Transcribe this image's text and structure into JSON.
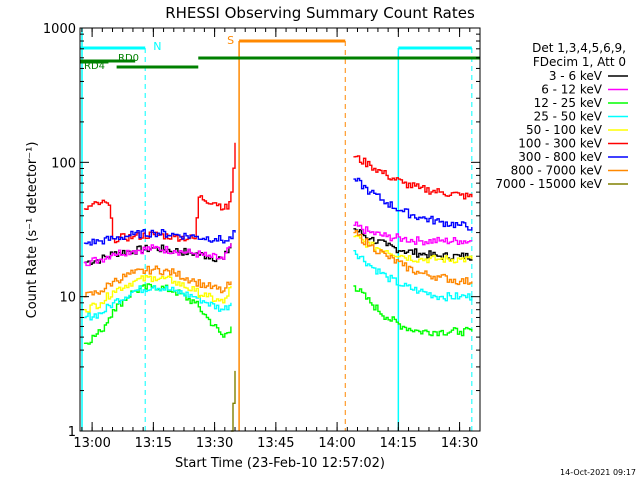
{
  "chart_data": {
    "type": "line",
    "title": "RHESSI Observing Summary Count Rates",
    "xlabel": "Start Time (23-Feb-10 12:57:02)",
    "ylabel": "Count Rate (s⁻¹ detector⁻¹)",
    "yscale": "log",
    "xlim": [
      "12:57:02",
      "14:35:00"
    ],
    "ylim": [
      1,
      1000
    ],
    "x_ticks": [
      "13:00",
      "13:15",
      "13:30",
      "13:45",
      "14:00",
      "14:15",
      "14:30"
    ],
    "y_ticks": [
      "1",
      "10",
      "100",
      "1000"
    ],
    "grid": false,
    "legend": {
      "position": "right",
      "header": [
        "Det 1,3,4,5,6,9,",
        "FDecim 1, Att 0"
      ]
    },
    "annotations": {
      "night_label": "N",
      "saa_label": "S",
      "rd0_label": "RD0",
      "rd4_label": "RD4",
      "timestamp": "14-Oct-2021 09:17"
    },
    "flag_intervals": {
      "night": [
        [
          "12:57:02",
          "13:13:00"
        ],
        [
          "14:15:00",
          "14:33:00"
        ]
      ],
      "saa": [
        [
          "13:36:00",
          "14:02:00"
        ]
      ],
      "rd0": [
        [
          "12:57:02",
          "13:13:00"
        ]
      ],
      "rd4": [
        [
          "12:57:02",
          "13:04:00"
        ],
        [
          "13:06:00",
          "13:26:00"
        ],
        [
          "13:26:00",
          "14:35:00"
        ]
      ]
    },
    "series": [
      {
        "name": "3 - 6 keV",
        "color": "#000000",
        "points": [
          [
            "12:58",
            18
          ],
          [
            "13:02",
            19
          ],
          [
            "13:05",
            21
          ],
          [
            "13:10",
            22
          ],
          [
            "13:15",
            23
          ],
          [
            "13:20",
            22
          ],
          [
            "13:25",
            21
          ],
          [
            "13:28",
            20
          ],
          [
            "13:32",
            19
          ],
          [
            "13:34",
            25
          ],
          [
            "14:04",
            32
          ],
          [
            "14:08",
            27
          ],
          [
            "14:12",
            24
          ],
          [
            "14:16",
            22
          ],
          [
            "14:20",
            21
          ],
          [
            "14:25",
            20
          ],
          [
            "14:30",
            20
          ],
          [
            "14:33",
            20
          ]
        ]
      },
      {
        "name": "6 - 12 keV",
        "color": "#ff00ff",
        "points": [
          [
            "12:58",
            18
          ],
          [
            "13:02",
            19
          ],
          [
            "13:05",
            21
          ],
          [
            "13:10",
            22
          ],
          [
            "13:15",
            23
          ],
          [
            "13:20",
            22
          ],
          [
            "13:25",
            21
          ],
          [
            "13:28",
            20
          ],
          [
            "13:32",
            19
          ],
          [
            "13:34",
            25
          ],
          [
            "14:04",
            34
          ],
          [
            "14:08",
            30
          ],
          [
            "14:12",
            28
          ],
          [
            "14:16",
            27
          ],
          [
            "14:20",
            26
          ],
          [
            "14:25",
            26
          ],
          [
            "14:30",
            26
          ],
          [
            "14:33",
            26
          ]
        ]
      },
      {
        "name": "12 - 25 keV",
        "color": "#00ff00",
        "points": [
          [
            "12:58",
            4.5
          ],
          [
            "13:02",
            5.5
          ],
          [
            "13:05",
            8
          ],
          [
            "13:10",
            11
          ],
          [
            "13:15",
            12
          ],
          [
            "13:20",
            11
          ],
          [
            "13:25",
            9
          ],
          [
            "13:28",
            7
          ],
          [
            "13:32",
            5
          ],
          [
            "13:34",
            6
          ],
          [
            "14:04",
            12
          ],
          [
            "14:08",
            9
          ],
          [
            "14:12",
            7
          ],
          [
            "14:16",
            6
          ],
          [
            "14:20",
            5.5
          ],
          [
            "14:25",
            5.5
          ],
          [
            "14:30",
            5.5
          ],
          [
            "14:33",
            5.5
          ]
        ]
      },
      {
        "name": "25 - 50 keV",
        "color": "#00ffff",
        "points": [
          [
            "12:58",
            7
          ],
          [
            "13:02",
            7.5
          ],
          [
            "13:05",
            9
          ],
          [
            "13:10",
            11
          ],
          [
            "13:15",
            12
          ],
          [
            "13:20",
            11
          ],
          [
            "13:25",
            10
          ],
          [
            "13:28",
            9
          ],
          [
            "13:32",
            8
          ],
          [
            "13:34",
            9
          ],
          [
            "14:04",
            22
          ],
          [
            "14:08",
            17
          ],
          [
            "14:12",
            14
          ],
          [
            "14:16",
            12
          ],
          [
            "14:20",
            11
          ],
          [
            "14:25",
            10
          ],
          [
            "14:30",
            10
          ],
          [
            "14:33",
            10
          ]
        ]
      },
      {
        "name": "50 - 100 keV",
        "color": "#ffff00",
        "points": [
          [
            "12:58",
            8
          ],
          [
            "13:02",
            9
          ],
          [
            "13:05",
            11
          ],
          [
            "13:10",
            13
          ],
          [
            "13:15",
            14
          ],
          [
            "13:20",
            13
          ],
          [
            "13:25",
            11
          ],
          [
            "13:28",
            10
          ],
          [
            "13:32",
            9
          ],
          [
            "13:34",
            12
          ],
          [
            "14:04",
            28
          ],
          [
            "14:08",
            24
          ],
          [
            "14:12",
            22
          ],
          [
            "14:16",
            20
          ],
          [
            "14:20",
            19
          ],
          [
            "14:25",
            19
          ],
          [
            "14:30",
            19
          ],
          [
            "14:33",
            19
          ]
        ]
      },
      {
        "name": "100 - 300 keV",
        "color": "#ff0000",
        "points": [
          [
            "12:58",
            45
          ],
          [
            "13:02",
            50
          ],
          [
            "13:04",
            48
          ],
          [
            "13:05",
            27
          ],
          [
            "13:10",
            28
          ],
          [
            "13:15",
            29
          ],
          [
            "13:20",
            28
          ],
          [
            "13:25",
            27
          ],
          [
            "13:26",
            55
          ],
          [
            "13:30",
            50
          ],
          [
            "13:33",
            45
          ],
          [
            "13:34",
            60
          ],
          [
            "13:35",
            140
          ],
          [
            "14:04",
            110
          ],
          [
            "14:08",
            95
          ],
          [
            "14:12",
            80
          ],
          [
            "14:16",
            70
          ],
          [
            "14:20",
            64
          ],
          [
            "14:25",
            60
          ],
          [
            "14:30",
            57
          ],
          [
            "14:33",
            55
          ]
        ]
      },
      {
        "name": "300 - 800 keV",
        "color": "#0000ff",
        "points": [
          [
            "12:58",
            25
          ],
          [
            "13:02",
            26
          ],
          [
            "13:05",
            27
          ],
          [
            "13:10",
            29
          ],
          [
            "13:15",
            30
          ],
          [
            "13:20",
            29
          ],
          [
            "13:25",
            28
          ],
          [
            "13:30",
            27
          ],
          [
            "13:33",
            26
          ],
          [
            "13:35",
            30
          ],
          [
            "14:04",
            75
          ],
          [
            "14:08",
            60
          ],
          [
            "14:12",
            50
          ],
          [
            "14:16",
            43
          ],
          [
            "14:20",
            39
          ],
          [
            "14:25",
            36
          ],
          [
            "14:30",
            34
          ],
          [
            "14:33",
            33
          ]
        ]
      },
      {
        "name": "800 - 7000 keV",
        "color": "#ff8800",
        "points": [
          [
            "12:58",
            10
          ],
          [
            "13:02",
            11
          ],
          [
            "13:05",
            13
          ],
          [
            "13:10",
            15
          ],
          [
            "13:15",
            16
          ],
          [
            "13:20",
            15
          ],
          [
            "13:25",
            13
          ],
          [
            "13:28",
            12
          ],
          [
            "13:32",
            11
          ],
          [
            "13:34",
            13
          ],
          [
            "14:04",
            30
          ],
          [
            "14:08",
            24
          ],
          [
            "14:12",
            20
          ],
          [
            "14:16",
            17
          ],
          [
            "14:20",
            15
          ],
          [
            "14:25",
            14
          ],
          [
            "14:30",
            13
          ],
          [
            "14:33",
            13
          ]
        ]
      },
      {
        "name": "7000 - 15000 keV",
        "color": "#808000",
        "points": [
          [
            "13:34",
            1.0
          ],
          [
            "13:35",
            2.8
          ]
        ]
      }
    ]
  }
}
